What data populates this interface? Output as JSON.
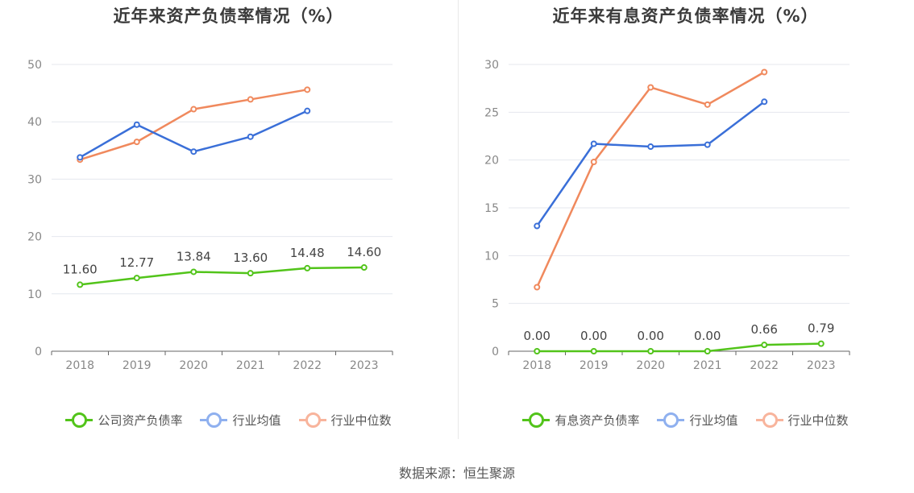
{
  "source": "数据来源：恒生聚源",
  "chart_data": [
    {
      "type": "line",
      "title": "近年来资产负债率情况（%）",
      "categories": [
        "2018",
        "2019",
        "2020",
        "2021",
        "2022",
        "2023"
      ],
      "ylim": [
        0,
        50
      ],
      "yticks": [
        0,
        10,
        20,
        30,
        40,
        50
      ],
      "grid": true,
      "legend_position": "bottom",
      "series": [
        {
          "name": "公司资产负债率",
          "color": "#52c41a",
          "values": [
            11.6,
            12.77,
            13.84,
            13.6,
            14.48,
            14.6
          ],
          "labels": [
            "11.60",
            "12.77",
            "13.84",
            "13.60",
            "14.48",
            "14.60"
          ]
        },
        {
          "name": "行业均值",
          "color": "#3a6fd8",
          "values": [
            33.8,
            39.5,
            34.8,
            37.4,
            41.9,
            null
          ]
        },
        {
          "name": "行业中位数",
          "color": "#f0895d",
          "values": [
            33.4,
            36.5,
            42.2,
            43.9,
            45.6,
            null
          ]
        }
      ]
    },
    {
      "type": "line",
      "title": "近年来有息资产负债率情况（%）",
      "categories": [
        "2018",
        "2019",
        "2020",
        "2021",
        "2022",
        "2023"
      ],
      "ylim": [
        0,
        30
      ],
      "yticks": [
        0,
        5,
        10,
        15,
        20,
        25,
        30
      ],
      "grid": true,
      "legend_position": "bottom",
      "series": [
        {
          "name": "有息资产负债率",
          "color": "#52c41a",
          "values": [
            0.0,
            0.0,
            0.0,
            0.0,
            0.66,
            0.79
          ],
          "labels": [
            "0.00",
            "0.00",
            "0.00",
            "0.00",
            "0.66",
            "0.79"
          ]
        },
        {
          "name": "行业均值",
          "color": "#3a6fd8",
          "values": [
            13.1,
            21.7,
            21.4,
            21.6,
            26.1,
            null
          ]
        },
        {
          "name": "行业中位数",
          "color": "#f0895d",
          "values": [
            6.7,
            19.8,
            27.6,
            25.8,
            29.2,
            null
          ]
        }
      ]
    }
  ],
  "legend_colors": {
    "main": "#52c41a",
    "mean": "#8fb0ef",
    "median": "#f8b49c"
  }
}
